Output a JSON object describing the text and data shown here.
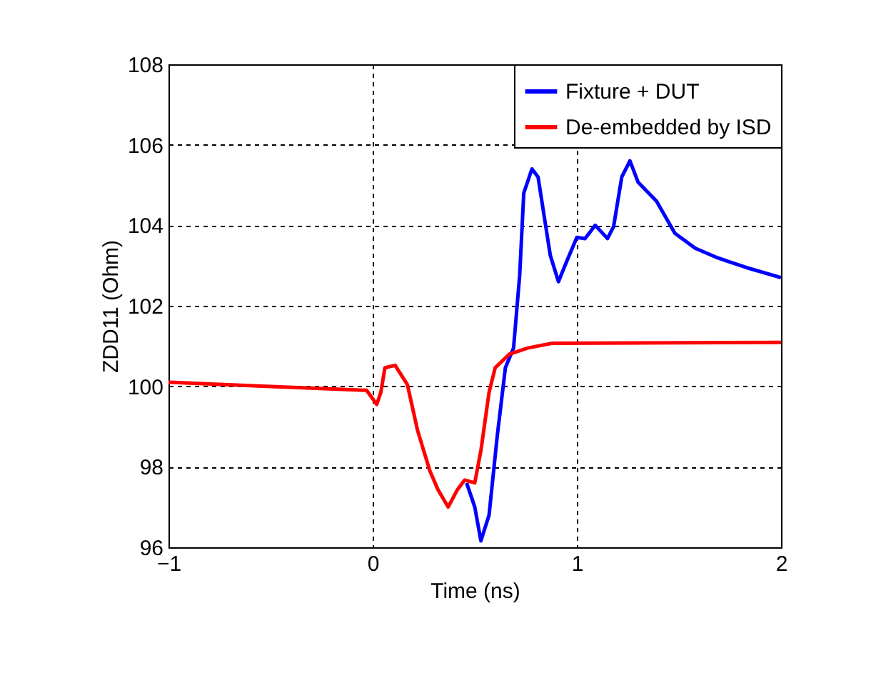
{
  "chart_data": {
    "type": "line",
    "xlabel": "Time (ns)",
    "ylabel": "ZDD11 (Ohm)",
    "xlim": [
      -1,
      2
    ],
    "xticks": [
      -1,
      0,
      1,
      2
    ],
    "ylim": [
      96,
      108
    ],
    "yticks": [
      96,
      98,
      100,
      102,
      104,
      106,
      108
    ],
    "grid": true,
    "legend": "top right",
    "line_style": "solid",
    "marker": "none",
    "series": [
      {
        "name": "Fixture + DUT",
        "color": "#0000ff",
        "x": [
          0.46,
          0.5,
          0.53,
          0.57,
          0.61,
          0.65,
          0.69,
          0.72,
          0.74,
          0.78,
          0.81,
          0.87,
          0.91,
          0.95,
          1.0,
          1.04,
          1.09,
          1.15,
          1.18,
          1.22,
          1.26,
          1.3,
          1.39,
          1.48,
          1.58,
          1.69,
          1.83,
          2.0
        ],
        "values": [
          97.6,
          97.0,
          96.16,
          96.8,
          98.76,
          100.46,
          100.95,
          102.76,
          104.8,
          105.4,
          105.2,
          103.25,
          102.6,
          103.1,
          103.7,
          103.67,
          104.0,
          103.67,
          103.97,
          105.2,
          105.6,
          105.07,
          104.6,
          103.8,
          103.43,
          103.19,
          102.95,
          102.7
        ]
      },
      {
        "name": "De-embedded by ISD",
        "color": "#ff0000",
        "x": [
          -1,
          -0.52,
          -0.03,
          0.02,
          0.04,
          0.06,
          0.11,
          0.17,
          0.22,
          0.28,
          0.32,
          0.37,
          0.415,
          0.45,
          0.5,
          0.53,
          0.57,
          0.6,
          0.67,
          0.76,
          0.88,
          2.0
        ],
        "values": [
          100.1,
          100.0,
          99.9,
          99.55,
          99.85,
          100.46,
          100.52,
          100.04,
          98.9,
          97.9,
          97.43,
          97.0,
          97.43,
          97.67,
          97.6,
          98.4,
          99.85,
          100.46,
          100.8,
          100.95,
          101.07,
          101.09
        ]
      }
    ]
  }
}
